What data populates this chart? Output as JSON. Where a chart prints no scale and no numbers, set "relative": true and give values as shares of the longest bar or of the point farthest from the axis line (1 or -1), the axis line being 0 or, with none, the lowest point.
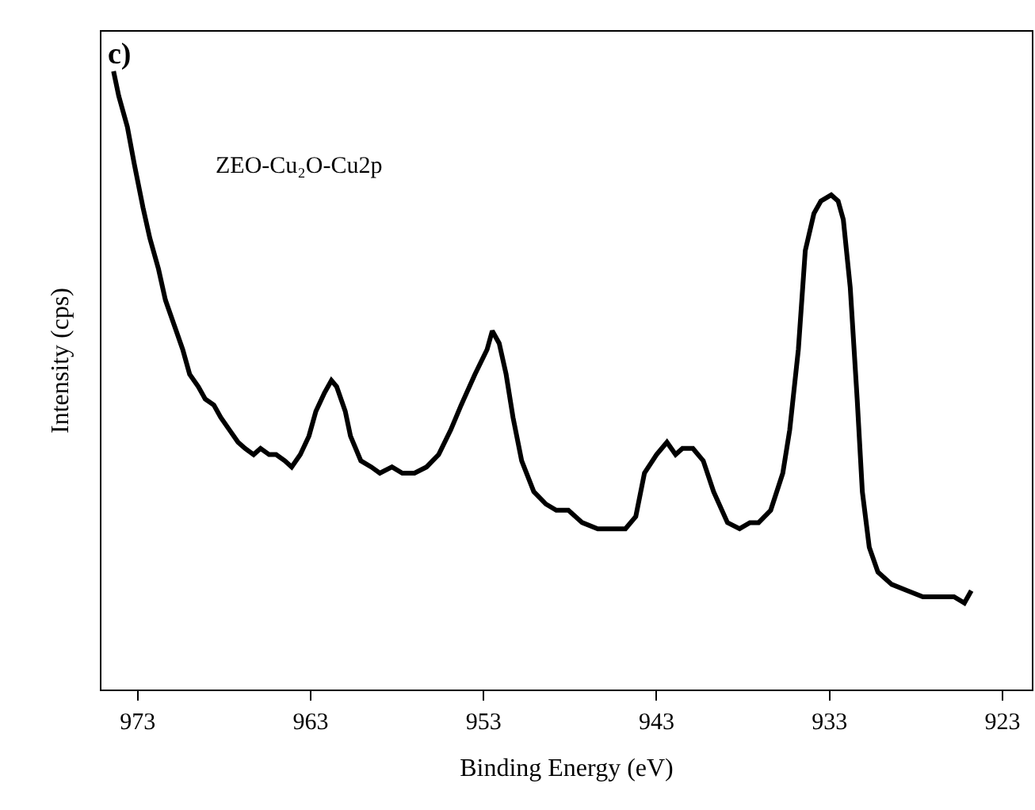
{
  "chart_data": {
    "type": "line",
    "relative": true,
    "xlabel": "Binding Energy (eV)",
    "ylabel": "Intensity (cps)",
    "annotations": [
      "c)",
      "ZEO-Cu₂O-Cu2p"
    ],
    "xlim": [
      975.1,
      921.3
    ],
    "xticks": [
      973,
      963,
      953,
      943,
      933,
      923
    ],
    "tick_labels": "x",
    "marker": "none",
    "line_style": "solid",
    "series": [
      {
        "color": "#000000",
        "x": [
          974.4,
          974.1,
          973.6,
          973.2,
          972.7,
          972.3,
          971.8,
          971.4,
          970.9,
          970.4,
          970.0,
          969.5,
          969.1,
          968.6,
          968.2,
          967.7,
          967.2,
          966.8,
          966.3,
          965.9,
          965.4,
          965.0,
          964.5,
          964.1,
          963.6,
          963.1,
          962.7,
          962.2,
          961.8,
          961.5,
          961.0,
          960.7,
          960.1,
          959.5,
          959.0,
          958.3,
          957.7,
          957.0,
          956.3,
          955.6,
          954.9,
          954.3,
          953.5,
          952.8,
          952.5,
          952.1,
          951.7,
          951.3,
          950.8,
          950.1,
          949.4,
          948.8,
          948.1,
          947.3,
          946.4,
          945.3,
          944.8,
          944.2,
          943.7,
          943.0,
          942.4,
          941.9,
          941.5,
          940.9,
          940.3,
          939.7,
          938.9,
          938.2,
          937.6,
          937.1,
          936.4,
          935.7,
          935.3,
          934.8,
          934.4,
          933.9,
          933.5,
          932.9,
          932.5,
          932.2,
          931.8,
          931.4,
          931.1,
          930.7,
          930.2,
          929.4,
          928.5,
          927.6,
          926.7,
          925.8,
          925.2,
          924.8
        ],
        "values": [
          1.0,
          0.96,
          0.91,
          0.85,
          0.78,
          0.73,
          0.68,
          0.63,
          0.59,
          0.55,
          0.51,
          0.49,
          0.47,
          0.46,
          0.44,
          0.42,
          0.4,
          0.39,
          0.38,
          0.39,
          0.38,
          0.38,
          0.37,
          0.36,
          0.38,
          0.41,
          0.45,
          0.48,
          0.5,
          0.49,
          0.45,
          0.41,
          0.37,
          0.36,
          0.35,
          0.36,
          0.35,
          0.35,
          0.36,
          0.38,
          0.42,
          0.46,
          0.51,
          0.55,
          0.58,
          0.56,
          0.51,
          0.44,
          0.37,
          0.32,
          0.3,
          0.29,
          0.29,
          0.27,
          0.26,
          0.26,
          0.26,
          0.28,
          0.35,
          0.38,
          0.4,
          0.38,
          0.39,
          0.39,
          0.37,
          0.32,
          0.27,
          0.26,
          0.27,
          0.27,
          0.29,
          0.35,
          0.42,
          0.55,
          0.71,
          0.77,
          0.79,
          0.8,
          0.79,
          0.76,
          0.65,
          0.47,
          0.32,
          0.23,
          0.19,
          0.17,
          0.16,
          0.15,
          0.15,
          0.15,
          0.14,
          0.16
        ]
      }
    ]
  }
}
